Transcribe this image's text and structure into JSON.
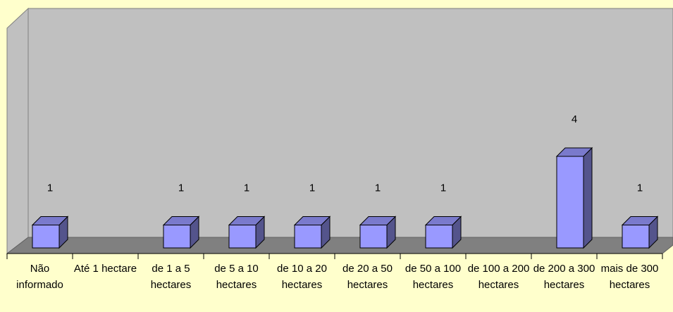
{
  "chart_data": {
    "type": "bar3d",
    "categories": [
      "Não informado",
      "Até 1 hectare",
      "de 1 a 5 hectares",
      "de 5 a 10 hectares",
      "de 10 a 20 hectares",
      "de 20 a 50 hectares",
      "de 50 a 100 hectares",
      "de 100 a 200 hectares",
      "de 200 a 300 hectares",
      "mais de 300 hectares"
    ],
    "values": [
      1,
      null,
      1,
      1,
      1,
      1,
      1,
      null,
      4,
      1
    ],
    "color": "#9999ff"
  }
}
